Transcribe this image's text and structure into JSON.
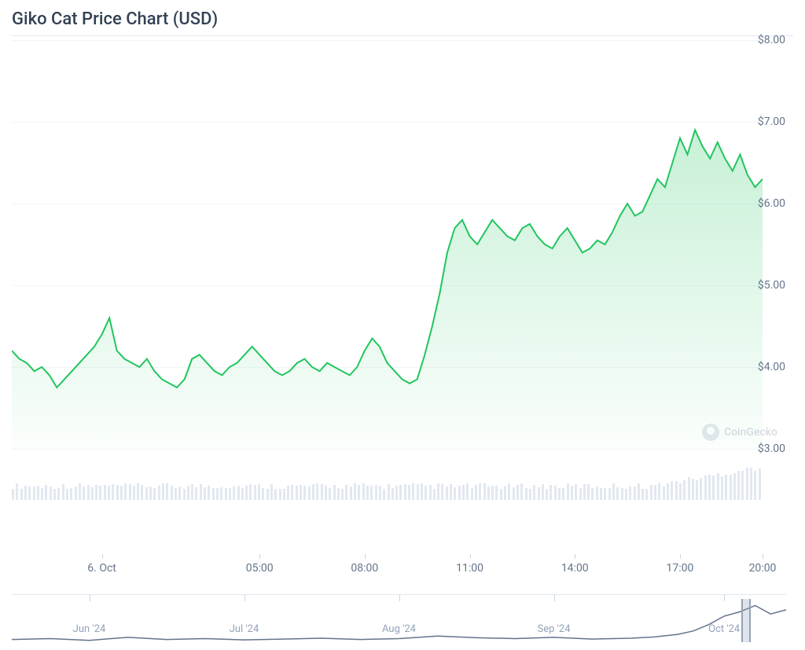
{
  "title": "Giko Cat Price Chart (USD)",
  "watermark": "CoinGecko",
  "main_chart": {
    "type": "area-line",
    "line_color": "#22c55e",
    "line_width": 2,
    "fill_top_color": "rgba(34,197,94,0.25)",
    "fill_bottom_color": "rgba(34,197,94,0.02)",
    "background_color": "#ffffff",
    "grid_color": "#f1f5f9",
    "ylim": [
      3.0,
      8.0
    ],
    "y_ticks": [
      {
        "value": 8.0,
        "label": "$8.00"
      },
      {
        "value": 7.0,
        "label": "$7.00"
      },
      {
        "value": 6.0,
        "label": "$6.00"
      },
      {
        "value": 5.0,
        "label": "$5.00"
      },
      {
        "value": 4.0,
        "label": "$4.00"
      },
      {
        "value": 3.0,
        "label": "$3.00"
      }
    ],
    "x_ticks": [
      {
        "pos": 0.12,
        "label": "6. Oct"
      },
      {
        "pos": 0.33,
        "label": "05:00"
      },
      {
        "pos": 0.47,
        "label": "08:00"
      },
      {
        "pos": 0.61,
        "label": "11:00"
      },
      {
        "pos": 0.75,
        "label": "14:00"
      },
      {
        "pos": 0.89,
        "label": "17:00"
      },
      {
        "pos": 1.0,
        "label": "20:00"
      }
    ],
    "data": [
      [
        0.0,
        4.2
      ],
      [
        0.01,
        4.1
      ],
      [
        0.02,
        4.05
      ],
      [
        0.03,
        3.95
      ],
      [
        0.04,
        4.0
      ],
      [
        0.05,
        3.9
      ],
      [
        0.06,
        3.75
      ],
      [
        0.07,
        3.85
      ],
      [
        0.08,
        3.95
      ],
      [
        0.09,
        4.05
      ],
      [
        0.1,
        4.15
      ],
      [
        0.11,
        4.25
      ],
      [
        0.12,
        4.4
      ],
      [
        0.13,
        4.6
      ],
      [
        0.14,
        4.2
      ],
      [
        0.15,
        4.1
      ],
      [
        0.16,
        4.05
      ],
      [
        0.17,
        4.0
      ],
      [
        0.18,
        4.1
      ],
      [
        0.19,
        3.95
      ],
      [
        0.2,
        3.85
      ],
      [
        0.21,
        3.8
      ],
      [
        0.22,
        3.75
      ],
      [
        0.23,
        3.85
      ],
      [
        0.24,
        4.1
      ],
      [
        0.25,
        4.15
      ],
      [
        0.26,
        4.05
      ],
      [
        0.27,
        3.95
      ],
      [
        0.28,
        3.9
      ],
      [
        0.29,
        4.0
      ],
      [
        0.3,
        4.05
      ],
      [
        0.31,
        4.15
      ],
      [
        0.32,
        4.25
      ],
      [
        0.33,
        4.15
      ],
      [
        0.34,
        4.05
      ],
      [
        0.35,
        3.95
      ],
      [
        0.36,
        3.9
      ],
      [
        0.37,
        3.95
      ],
      [
        0.38,
        4.05
      ],
      [
        0.39,
        4.1
      ],
      [
        0.4,
        4.0
      ],
      [
        0.41,
        3.95
      ],
      [
        0.42,
        4.05
      ],
      [
        0.43,
        4.0
      ],
      [
        0.44,
        3.95
      ],
      [
        0.45,
        3.9
      ],
      [
        0.46,
        4.0
      ],
      [
        0.47,
        4.2
      ],
      [
        0.48,
        4.35
      ],
      [
        0.49,
        4.25
      ],
      [
        0.5,
        4.05
      ],
      [
        0.51,
        3.95
      ],
      [
        0.52,
        3.85
      ],
      [
        0.53,
        3.8
      ],
      [
        0.54,
        3.85
      ],
      [
        0.55,
        4.15
      ],
      [
        0.56,
        4.5
      ],
      [
        0.57,
        4.9
      ],
      [
        0.58,
        5.4
      ],
      [
        0.59,
        5.7
      ],
      [
        0.6,
        5.8
      ],
      [
        0.61,
        5.6
      ],
      [
        0.62,
        5.5
      ],
      [
        0.63,
        5.65
      ],
      [
        0.64,
        5.8
      ],
      [
        0.65,
        5.7
      ],
      [
        0.66,
        5.6
      ],
      [
        0.67,
        5.55
      ],
      [
        0.68,
        5.7
      ],
      [
        0.69,
        5.75
      ],
      [
        0.7,
        5.6
      ],
      [
        0.71,
        5.5
      ],
      [
        0.72,
        5.45
      ],
      [
        0.73,
        5.6
      ],
      [
        0.74,
        5.7
      ],
      [
        0.75,
        5.55
      ],
      [
        0.76,
        5.4
      ],
      [
        0.77,
        5.45
      ],
      [
        0.78,
        5.55
      ],
      [
        0.79,
        5.5
      ],
      [
        0.8,
        5.65
      ],
      [
        0.81,
        5.85
      ],
      [
        0.82,
        6.0
      ],
      [
        0.83,
        5.85
      ],
      [
        0.84,
        5.9
      ],
      [
        0.85,
        6.1
      ],
      [
        0.86,
        6.3
      ],
      [
        0.87,
        6.2
      ],
      [
        0.88,
        6.5
      ],
      [
        0.89,
        6.8
      ],
      [
        0.9,
        6.6
      ],
      [
        0.91,
        6.9
      ],
      [
        0.92,
        6.7
      ],
      [
        0.93,
        6.55
      ],
      [
        0.94,
        6.75
      ],
      [
        0.95,
        6.55
      ],
      [
        0.96,
        6.4
      ],
      [
        0.97,
        6.6
      ],
      [
        0.98,
        6.35
      ],
      [
        0.99,
        6.2
      ],
      [
        1.0,
        6.3
      ]
    ]
  },
  "volume_chart": {
    "bar_color": "#e2e8f0",
    "bar_count": 180,
    "base_height": 0.35,
    "height_variance": 0.15,
    "tail_boost": 0.5
  },
  "mini_chart": {
    "line_color": "#64748b",
    "line_width": 1.5,
    "x_ticks": [
      {
        "pos": 0.1,
        "label": "Jun '24"
      },
      {
        "pos": 0.3,
        "label": "Jul '24"
      },
      {
        "pos": 0.5,
        "label": "Aug '24"
      },
      {
        "pos": 0.7,
        "label": "Sep '24"
      },
      {
        "pos": 0.92,
        "label": "Oct '24"
      }
    ],
    "data": [
      [
        0.0,
        0.1
      ],
      [
        0.05,
        0.12
      ],
      [
        0.1,
        0.08
      ],
      [
        0.15,
        0.15
      ],
      [
        0.2,
        0.1
      ],
      [
        0.25,
        0.12
      ],
      [
        0.3,
        0.09
      ],
      [
        0.35,
        0.11
      ],
      [
        0.4,
        0.13
      ],
      [
        0.45,
        0.1
      ],
      [
        0.5,
        0.12
      ],
      [
        0.55,
        0.18
      ],
      [
        0.6,
        0.14
      ],
      [
        0.65,
        0.12
      ],
      [
        0.7,
        0.15
      ],
      [
        0.75,
        0.11
      ],
      [
        0.8,
        0.13
      ],
      [
        0.83,
        0.16
      ],
      [
        0.86,
        0.22
      ],
      [
        0.88,
        0.3
      ],
      [
        0.9,
        0.45
      ],
      [
        0.92,
        0.65
      ],
      [
        0.94,
        0.75
      ],
      [
        0.96,
        0.9
      ],
      [
        0.98,
        0.7
      ],
      [
        1.0,
        0.8
      ]
    ]
  }
}
